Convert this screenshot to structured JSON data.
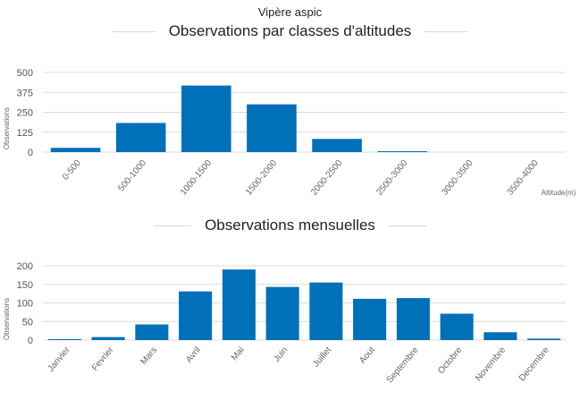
{
  "species": "Vipère aspic",
  "chart_data": [
    {
      "type": "bar",
      "title": "Observations par classes d'altitudes",
      "ylabel": "Observations",
      "xlabel": "Altitude(m)",
      "ylim": [
        0,
        500
      ],
      "yticks": [
        0,
        125,
        250,
        375,
        500
      ],
      "grid": true,
      "color": "#0070b8",
      "categories": [
        "0-500",
        "500-1000",
        "1000-1500",
        "1500-2000",
        "2000-2500",
        "2500-3000",
        "3000-3500",
        "3500-4000"
      ],
      "values": [
        27,
        183,
        418,
        300,
        83,
        5,
        0,
        0
      ]
    },
    {
      "type": "bar",
      "title": "Observations mensuelles",
      "ylabel": "Observations",
      "xlabel": "",
      "ylim": [
        0,
        200
      ],
      "yticks": [
        0,
        50,
        100,
        150,
        200
      ],
      "grid": true,
      "color": "#0070b8",
      "categories": [
        "Janvier",
        "Fevrier",
        "Mars",
        "Avril",
        "Mai",
        "Juin",
        "Juillet",
        "Aout",
        "Septembre",
        "Octobre",
        "Novembre",
        "Decembre"
      ],
      "values": [
        2,
        8,
        42,
        131,
        190,
        143,
        155,
        111,
        113,
        71,
        21,
        4
      ]
    }
  ]
}
